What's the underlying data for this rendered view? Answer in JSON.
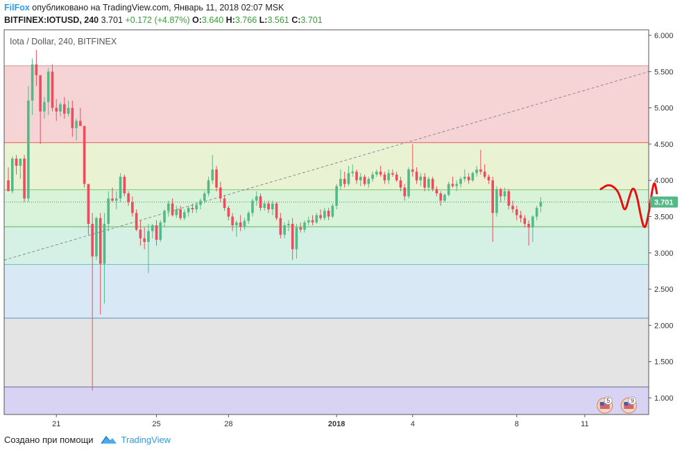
{
  "header": {
    "author": "FilFox",
    "published": "опубликовано на TradingView.com, Январь 11, 2018 02:07 MSK",
    "symbol": "BITFINEX:IOTUSD, 240",
    "last": "3.701",
    "change": "+0.172 (+4.87%)",
    "o_label": "O:",
    "o_val": "3.640",
    "h_label": "H:",
    "h_val": "3.766",
    "l_label": "L:",
    "l_val": "3.561",
    "c_label": "C:",
    "c_val": "3.701"
  },
  "footer": {
    "created_with": "Создано при помощи",
    "brand": "TradingView"
  },
  "colors": {
    "up": "#53b987",
    "down": "#eb4d5c",
    "price_badge": "#53b987",
    "drawing": "#e8100f"
  },
  "chart_data": {
    "type": "candlestick",
    "title": "Iota / Dollar, 240, BITFINEX",
    "y_ticks": [
      "6.000",
      "5.500",
      "5.000",
      "4.500",
      "4.000",
      "3.500",
      "3.000",
      "2.500",
      "2.000",
      "1.500",
      "1.000"
    ],
    "y_tick_values": [
      6.0,
      5.5,
      5.0,
      4.5,
      4.0,
      3.5,
      3.0,
      2.5,
      2.0,
      1.5,
      1.0
    ],
    "ylim": [
      0.8,
      6.1
    ],
    "x_ticks": [
      "21",
      "25",
      "28",
      "2018",
      "4",
      "8",
      "11"
    ],
    "x_tick_bold": [
      false,
      false,
      false,
      true,
      false,
      false,
      false
    ],
    "x_tick_candle_index": [
      12,
      37,
      55,
      82,
      101,
      127,
      144
    ],
    "last_price": "3.701",
    "last_price_value": 3.701,
    "horizontal_levels": [
      5.58,
      4.52,
      3.87,
      3.36,
      2.84,
      2.1,
      1.15
    ],
    "band_colors": [
      "#f6d4d6",
      "#eaf2d4",
      "#d9f3da",
      "#d5f1e6",
      "#d8e8f4",
      "#e4e4e4",
      "#d8d3f2"
    ],
    "level_line_colors": [
      "#d2959a",
      "#e55a5a",
      "#7bc46a",
      "#5cb45c",
      "#6fc3b1",
      "#5b8fc8",
      "#666699"
    ],
    "trend_line": {
      "from": {
        "index": 0,
        "price": 2.9
      },
      "to": {
        "index": 162,
        "price": 5.5
      }
    },
    "candles": [
      [
        4.0,
        4.18,
        3.85,
        3.85
      ],
      [
        3.85,
        4.33,
        3.82,
        4.3
      ],
      [
        4.3,
        4.35,
        4.08,
        4.2
      ],
      [
        4.2,
        4.3,
        4.02,
        4.3
      ],
      [
        4.3,
        4.35,
        3.7,
        3.75
      ],
      [
        3.75,
        5.3,
        3.7,
        5.1
      ],
      [
        5.1,
        5.68,
        4.9,
        5.6
      ],
      [
        5.6,
        5.8,
        5.3,
        5.45
      ],
      [
        5.45,
        5.45,
        4.5,
        4.95
      ],
      [
        4.95,
        5.15,
        4.85,
        5.08
      ],
      [
        5.08,
        5.55,
        4.9,
        5.5
      ],
      [
        5.5,
        5.6,
        4.95,
        5.0
      ],
      [
        5.0,
        5.12,
        4.82,
        4.95
      ],
      [
        4.95,
        5.08,
        4.88,
        5.05
      ],
      [
        5.05,
        5.15,
        4.85,
        4.92
      ],
      [
        4.92,
        5.1,
        4.88,
        5.0
      ],
      [
        5.0,
        5.1,
        4.6,
        4.72
      ],
      [
        4.72,
        4.85,
        4.55,
        4.82
      ],
      [
        4.82,
        5.0,
        4.75,
        4.75
      ],
      [
        4.75,
        4.75,
        3.9,
        3.95
      ],
      [
        3.95,
        3.95,
        3.25,
        3.4
      ],
      [
        3.4,
        3.55,
        1.1,
        2.95
      ],
      [
        2.95,
        3.5,
        2.9,
        3.48
      ],
      [
        3.48,
        3.55,
        2.15,
        2.85
      ],
      [
        2.85,
        3.55,
        2.3,
        3.4
      ],
      [
        3.4,
        3.85,
        3.3,
        3.75
      ],
      [
        3.75,
        3.9,
        3.7,
        3.72
      ],
      [
        3.72,
        3.85,
        3.6,
        3.75
      ],
      [
        3.75,
        4.1,
        3.7,
        4.05
      ],
      [
        4.05,
        4.08,
        3.78,
        3.82
      ],
      [
        3.82,
        3.85,
        3.65,
        3.7
      ],
      [
        3.7,
        3.78,
        3.5,
        3.55
      ],
      [
        3.55,
        3.6,
        3.3,
        3.32
      ],
      [
        3.32,
        3.45,
        3.1,
        3.2
      ],
      [
        3.2,
        3.35,
        3.05,
        3.15
      ],
      [
        3.15,
        3.4,
        2.72,
        3.3
      ],
      [
        3.3,
        3.4,
        3.2,
        3.38
      ],
      [
        3.38,
        3.45,
        3.1,
        3.18
      ],
      [
        3.18,
        3.45,
        3.15,
        3.42
      ],
      [
        3.42,
        3.6,
        3.35,
        3.58
      ],
      [
        3.58,
        3.72,
        3.5,
        3.68
      ],
      [
        3.68,
        3.75,
        3.5,
        3.52
      ],
      [
        3.52,
        3.65,
        3.48,
        3.6
      ],
      [
        3.6,
        3.65,
        3.45,
        3.48
      ],
      [
        3.48,
        3.6,
        3.45,
        3.56
      ],
      [
        3.56,
        3.65,
        3.5,
        3.62
      ],
      [
        3.62,
        3.68,
        3.55,
        3.6
      ],
      [
        3.6,
        3.7,
        3.55,
        3.66
      ],
      [
        3.66,
        3.75,
        3.6,
        3.72
      ],
      [
        3.72,
        3.85,
        3.68,
        3.82
      ],
      [
        3.82,
        4.05,
        3.78,
        4.0
      ],
      [
        4.0,
        4.35,
        3.95,
        4.15
      ],
      [
        4.15,
        4.2,
        3.85,
        3.9
      ],
      [
        3.9,
        3.98,
        3.7,
        3.75
      ],
      [
        3.75,
        3.8,
        3.58,
        3.62
      ],
      [
        3.62,
        3.65,
        3.45,
        3.5
      ],
      [
        3.5,
        3.55,
        3.3,
        3.38
      ],
      [
        3.38,
        3.45,
        3.22,
        3.42
      ],
      [
        3.42,
        3.52,
        3.3,
        3.36
      ],
      [
        3.36,
        3.48,
        3.32,
        3.44
      ],
      [
        3.44,
        3.58,
        3.4,
        3.55
      ],
      [
        3.55,
        3.75,
        3.5,
        3.72
      ],
      [
        3.72,
        3.85,
        3.65,
        3.78
      ],
      [
        3.78,
        3.82,
        3.58,
        3.62
      ],
      [
        3.62,
        3.72,
        3.58,
        3.68
      ],
      [
        3.68,
        3.72,
        3.55,
        3.6
      ],
      [
        3.6,
        3.72,
        3.52,
        3.68
      ],
      [
        3.68,
        3.7,
        3.45,
        3.48
      ],
      [
        3.48,
        3.55,
        3.2,
        3.25
      ],
      [
        3.25,
        3.42,
        3.2,
        3.38
      ],
      [
        3.38,
        3.45,
        3.3,
        3.4
      ],
      [
        3.4,
        3.48,
        2.9,
        3.05
      ],
      [
        3.05,
        3.4,
        2.92,
        3.35
      ],
      [
        3.35,
        3.42,
        3.28,
        3.32
      ],
      [
        3.32,
        3.45,
        3.28,
        3.42
      ],
      [
        3.42,
        3.5,
        3.38,
        3.45
      ],
      [
        3.45,
        3.52,
        3.38,
        3.42
      ],
      [
        3.42,
        3.55,
        3.4,
        3.52
      ],
      [
        3.52,
        3.6,
        3.45,
        3.48
      ],
      [
        3.48,
        3.62,
        3.45,
        3.58
      ],
      [
        3.58,
        3.62,
        3.45,
        3.5
      ],
      [
        3.5,
        3.68,
        3.48,
        3.65
      ],
      [
        3.65,
        3.95,
        3.6,
        3.92
      ],
      [
        3.92,
        4.15,
        3.88,
        4.02
      ],
      [
        4.02,
        4.12,
        3.9,
        3.95
      ],
      [
        3.95,
        4.2,
        3.92,
        4.1
      ],
      [
        4.1,
        4.22,
        4.05,
        4.12
      ],
      [
        4.12,
        4.15,
        3.95,
        4.0
      ],
      [
        4.0,
        4.1,
        3.92,
        4.05
      ],
      [
        4.05,
        4.08,
        3.92,
        3.95
      ],
      [
        3.95,
        4.05,
        3.9,
        4.02
      ],
      [
        4.02,
        4.12,
        3.98,
        4.08
      ],
      [
        4.08,
        4.15,
        4.05,
        4.12
      ],
      [
        4.12,
        4.2,
        4.05,
        4.08
      ],
      [
        4.08,
        4.12,
        3.95,
        4.0
      ],
      [
        4.0,
        4.15,
        3.95,
        4.1
      ],
      [
        4.1,
        4.15,
        4.05,
        4.08
      ],
      [
        4.08,
        4.12,
        3.98,
        4.0
      ],
      [
        4.0,
        4.05,
        3.85,
        3.9
      ],
      [
        3.9,
        3.95,
        3.72,
        3.78
      ],
      [
        3.78,
        4.18,
        3.75,
        4.15
      ],
      [
        4.15,
        4.5,
        4.05,
        4.12
      ],
      [
        4.12,
        4.18,
        3.95,
        4.0
      ],
      [
        4.0,
        4.1,
        3.92,
        4.05
      ],
      [
        4.05,
        4.1,
        3.85,
        3.9
      ],
      [
        3.9,
        4.05,
        3.85,
        4.02
      ],
      [
        4.02,
        4.05,
        3.85,
        3.88
      ],
      [
        3.88,
        3.92,
        3.78,
        3.82
      ],
      [
        3.82,
        3.85,
        3.65,
        3.72
      ],
      [
        3.72,
        3.82,
        3.7,
        3.8
      ],
      [
        3.8,
        3.98,
        3.78,
        3.95
      ],
      [
        3.95,
        4.05,
        3.9,
        3.92
      ],
      [
        3.92,
        4.0,
        3.85,
        3.95
      ],
      [
        3.95,
        4.05,
        3.9,
        4.02
      ],
      [
        4.02,
        4.15,
        3.98,
        4.05
      ],
      [
        4.05,
        4.1,
        3.95,
        4.0
      ],
      [
        4.0,
        4.12,
        3.98,
        4.1
      ],
      [
        4.1,
        4.2,
        4.05,
        4.15
      ],
      [
        4.15,
        4.42,
        4.08,
        4.12
      ],
      [
        4.12,
        4.22,
        4.02,
        4.05
      ],
      [
        4.05,
        4.08,
        3.95,
        4.0
      ],
      [
        4.0,
        4.05,
        3.15,
        3.55
      ],
      [
        3.55,
        3.92,
        3.5,
        3.88
      ],
      [
        3.88,
        3.9,
        3.7,
        3.78
      ],
      [
        3.78,
        3.9,
        3.72,
        3.85
      ],
      [
        3.85,
        3.88,
        3.6,
        3.65
      ],
      [
        3.65,
        3.72,
        3.55,
        3.6
      ],
      [
        3.6,
        3.65,
        3.45,
        3.52
      ],
      [
        3.52,
        3.58,
        3.42,
        3.48
      ],
      [
        3.48,
        3.52,
        3.35,
        3.4
      ],
      [
        3.4,
        3.45,
        3.1,
        3.35
      ],
      [
        3.35,
        3.52,
        3.15,
        3.5
      ],
      [
        3.5,
        3.65,
        3.45,
        3.62
      ],
      [
        3.64,
        3.77,
        3.56,
        3.7
      ]
    ],
    "drawing_path": [
      [
        148,
        3.88
      ],
      [
        150,
        3.95
      ],
      [
        152,
        3.88
      ],
      [
        153,
        3.75
      ],
      [
        154,
        3.55
      ],
      [
        155,
        3.75
      ],
      [
        156,
        3.92
      ],
      [
        157,
        3.8
      ],
      [
        158,
        3.5
      ],
      [
        159,
        3.3
      ],
      [
        160,
        3.55
      ],
      [
        161,
        3.92
      ],
      [
        161.5,
        3.98
      ],
      [
        162,
        3.82
      ]
    ],
    "event_markers": [
      {
        "label": "5",
        "index": 149
      },
      {
        "label": "9",
        "index": 155
      }
    ]
  }
}
